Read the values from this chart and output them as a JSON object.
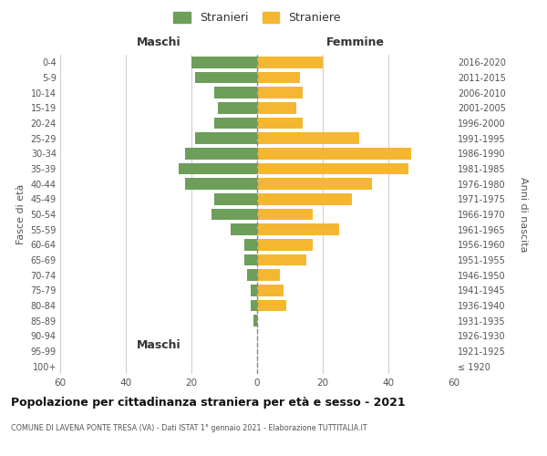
{
  "age_groups": [
    "100+",
    "95-99",
    "90-94",
    "85-89",
    "80-84",
    "75-79",
    "70-74",
    "65-69",
    "60-64",
    "55-59",
    "50-54",
    "45-49",
    "40-44",
    "35-39",
    "30-34",
    "25-29",
    "20-24",
    "15-19",
    "10-14",
    "5-9",
    "0-4"
  ],
  "birth_years": [
    "≤ 1920",
    "1921-1925",
    "1926-1930",
    "1931-1935",
    "1936-1940",
    "1941-1945",
    "1946-1950",
    "1951-1955",
    "1956-1960",
    "1961-1965",
    "1966-1970",
    "1971-1975",
    "1976-1980",
    "1981-1985",
    "1986-1990",
    "1991-1995",
    "1996-2000",
    "2001-2005",
    "2006-2010",
    "2011-2015",
    "2016-2020"
  ],
  "maschi": [
    0,
    0,
    0,
    1,
    2,
    2,
    3,
    4,
    4,
    8,
    14,
    13,
    22,
    24,
    22,
    19,
    13,
    12,
    13,
    19,
    20
  ],
  "femmine": [
    0,
    0,
    0,
    0,
    9,
    8,
    7,
    15,
    17,
    25,
    17,
    29,
    35,
    46,
    47,
    31,
    14,
    12,
    14,
    13,
    20
  ],
  "male_color": "#6d9e5a",
  "female_color": "#f5b731",
  "center_line_color": "#888888",
  "grid_color": "#cccccc",
  "background_color": "#ffffff",
  "title": "Popolazione per cittadinanza straniera per età e sesso - 2021",
  "subtitle": "COMUNE DI LAVENA PONTE TRESA (VA) - Dati ISTAT 1° gennaio 2021 - Elaborazione TUTTITALIA.IT",
  "xlabel_left": "Maschi",
  "xlabel_right": "Femmine",
  "ylabel_left": "Fasce di età",
  "ylabel_right": "Anni di nascita",
  "legend_male": "Stranieri",
  "legend_female": "Straniere",
  "xlim": 60,
  "bar_height": 0.75
}
